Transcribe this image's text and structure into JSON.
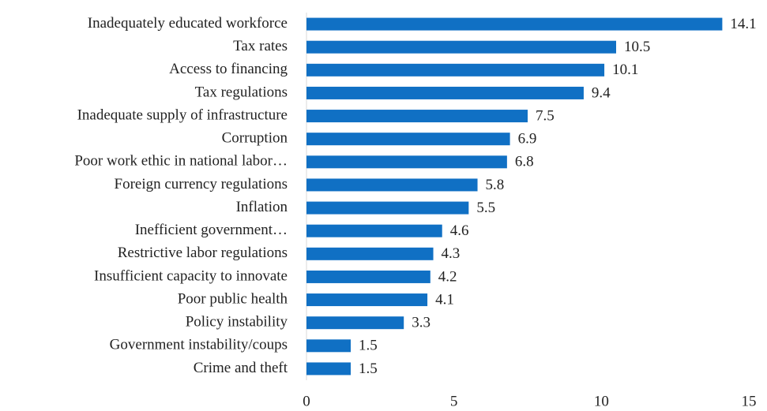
{
  "chart_data": {
    "type": "bar",
    "orientation": "horizontal",
    "categories": [
      "Inadequately educated workforce",
      "Tax rates",
      "Access to financing",
      "Tax regulations",
      "Inadequate supply of infrastructure",
      "Corruption",
      "Poor work ethic in national labor…",
      "Foreign currency regulations",
      "Inflation",
      "Inefficient government…",
      "Restrictive labor regulations",
      "Insufficient capacity to innovate",
      "Poor public health",
      "Policy instability",
      "Government instability/coups",
      "Crime and theft"
    ],
    "values": [
      14.1,
      10.5,
      10.1,
      9.4,
      7.5,
      6.9,
      6.8,
      5.8,
      5.5,
      4.6,
      4.3,
      4.2,
      4.1,
      3.3,
      1.5,
      1.5
    ],
    "color": "#1070c4",
    "xlim": [
      0,
      15
    ],
    "xticks": [
      0,
      5,
      10,
      15
    ],
    "grid": false
  }
}
